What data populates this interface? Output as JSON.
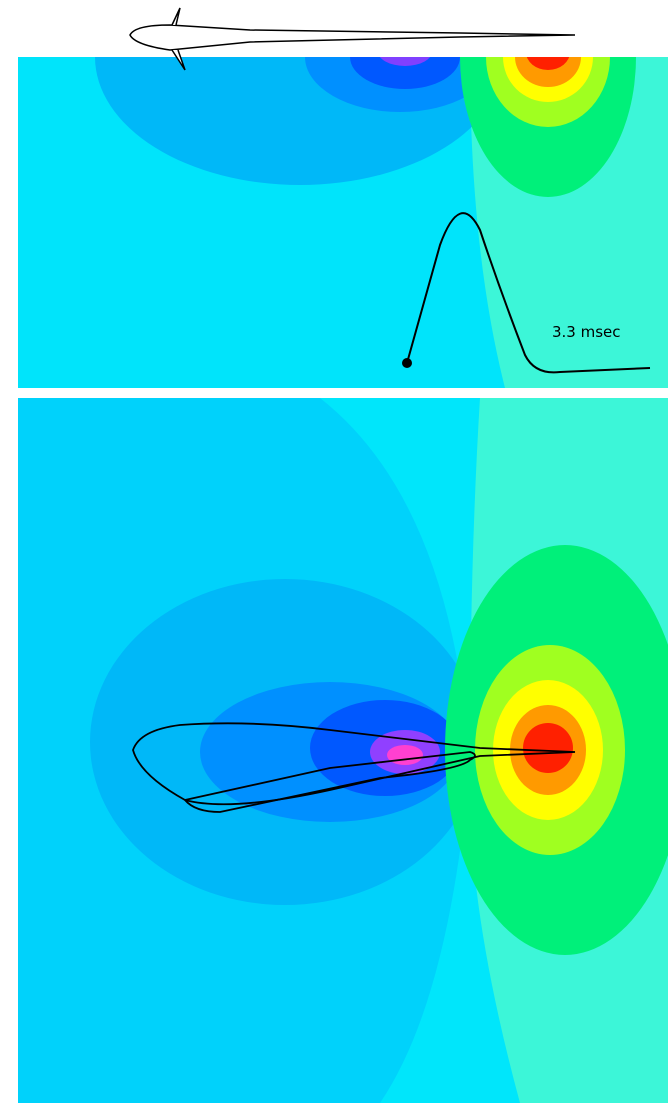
{
  "annotation": {
    "time_label": "3.3 msec"
  }
}
